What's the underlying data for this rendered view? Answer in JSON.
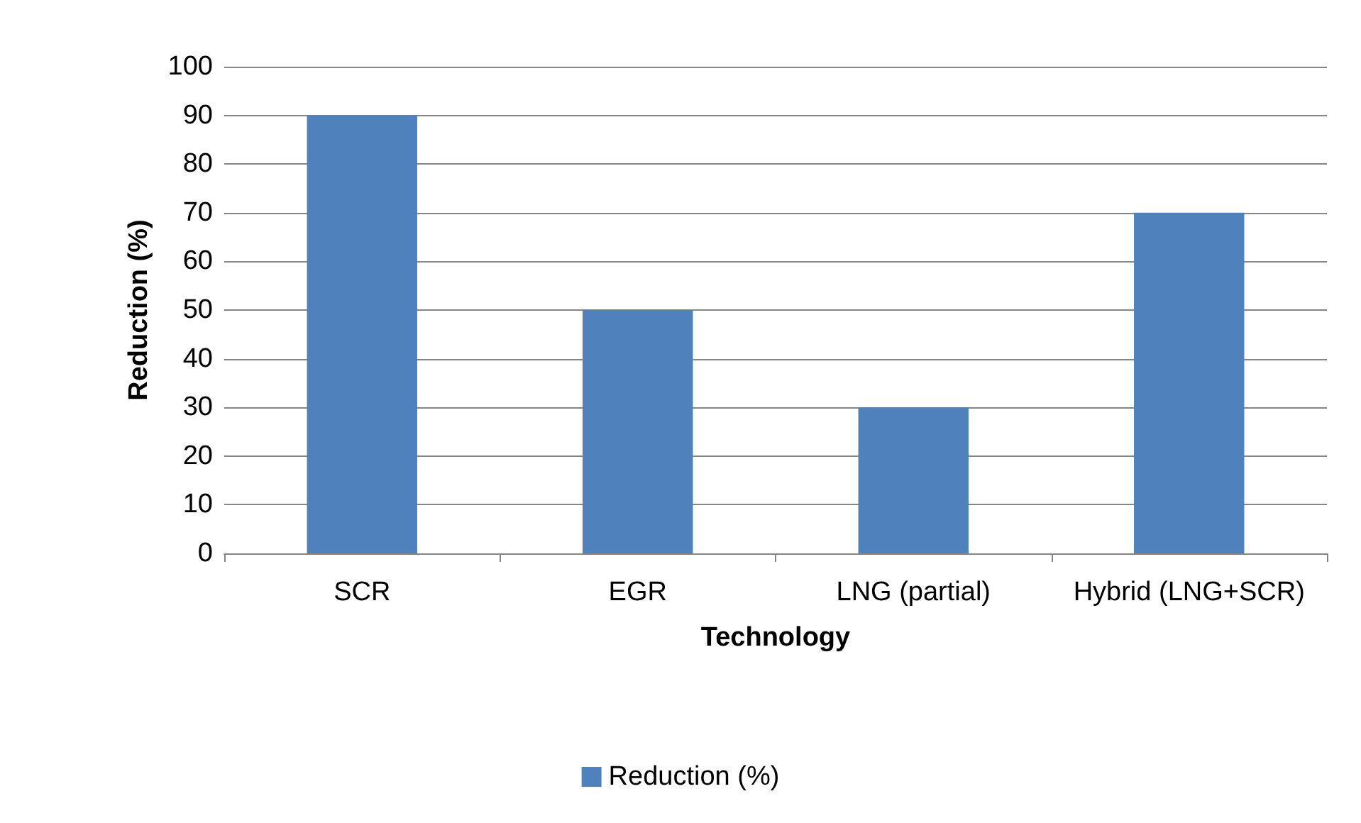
{
  "chart_data": {
    "type": "bar",
    "xlabel": "Technology",
    "ylabel": "Reduction (%)",
    "categories": [
      "SCR",
      "EGR",
      "LNG (partial)",
      "Hybrid (LNG+SCR)"
    ],
    "series": [
      {
        "name": "Reduction (%)",
        "color": "#4f81bd",
        "values": [
          90,
          50,
          30,
          70
        ]
      }
    ],
    "ylim": [
      0,
      100
    ],
    "yticks": [
      0,
      10,
      20,
      30,
      40,
      50,
      60,
      70,
      80,
      90,
      100
    ],
    "grid": "y",
    "legend": "bottom"
  }
}
